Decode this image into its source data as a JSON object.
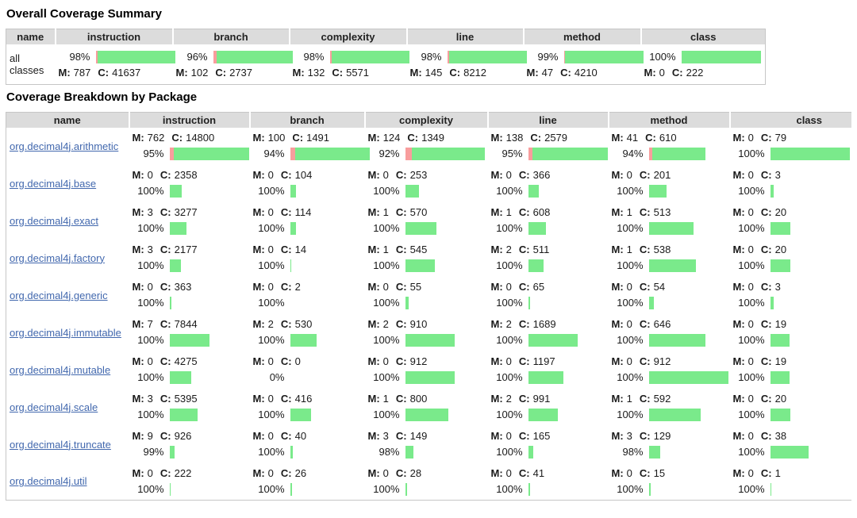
{
  "summary_title": "Overall Coverage Summary",
  "breakdown_title": "Coverage Breakdown by Package",
  "columns": [
    "name",
    "instruction",
    "branch",
    "complexity",
    "line",
    "method",
    "class"
  ],
  "metrics": [
    "instruction",
    "branch",
    "complexity",
    "line",
    "method",
    "class"
  ],
  "labels": {
    "missed": "M:",
    "covered": "C:"
  },
  "colors": {
    "covered_green": "#7aea8b",
    "missed_red": "#f89d9d",
    "header_bg": "#dcdcdc",
    "table_border": "#c6c6c6",
    "link_blue": "#4268ae"
  },
  "summary": {
    "name": "all classes",
    "metrics": {
      "instruction": {
        "pct": "98%",
        "missed": 787,
        "covered": 41637
      },
      "branch": {
        "pct": "96%",
        "missed": 102,
        "covered": 2737
      },
      "complexity": {
        "pct": "98%",
        "missed": 132,
        "covered": 5571
      },
      "line": {
        "pct": "98%",
        "missed": 145,
        "covered": 8212
      },
      "method": {
        "pct": "99%",
        "missed": 47,
        "covered": 4210
      },
      "class": {
        "pct": "100%",
        "missed": 0,
        "covered": 222
      }
    }
  },
  "packages": [
    {
      "name": "org.decimal4j.arithmetic",
      "metrics": {
        "instruction": {
          "pct": "95%",
          "missed": 762,
          "covered": 14800
        },
        "branch": {
          "pct": "94%",
          "missed": 100,
          "covered": 1491
        },
        "complexity": {
          "pct": "92%",
          "missed": 124,
          "covered": 1349
        },
        "line": {
          "pct": "95%",
          "missed": 138,
          "covered": 2579
        },
        "method": {
          "pct": "94%",
          "missed": 41,
          "covered": 610
        },
        "class": {
          "pct": "100%",
          "missed": 0,
          "covered": 79
        }
      }
    },
    {
      "name": "org.decimal4j.base",
      "metrics": {
        "instruction": {
          "pct": "100%",
          "missed": 0,
          "covered": 2358
        },
        "branch": {
          "pct": "100%",
          "missed": 0,
          "covered": 104
        },
        "complexity": {
          "pct": "100%",
          "missed": 0,
          "covered": 253
        },
        "line": {
          "pct": "100%",
          "missed": 0,
          "covered": 366
        },
        "method": {
          "pct": "100%",
          "missed": 0,
          "covered": 201
        },
        "class": {
          "pct": "100%",
          "missed": 0,
          "covered": 3
        }
      }
    },
    {
      "name": "org.decimal4j.exact",
      "metrics": {
        "instruction": {
          "pct": "100%",
          "missed": 3,
          "covered": 3277
        },
        "branch": {
          "pct": "100%",
          "missed": 0,
          "covered": 114
        },
        "complexity": {
          "pct": "100%",
          "missed": 1,
          "covered": 570
        },
        "line": {
          "pct": "100%",
          "missed": 1,
          "covered": 608
        },
        "method": {
          "pct": "100%",
          "missed": 1,
          "covered": 513
        },
        "class": {
          "pct": "100%",
          "missed": 0,
          "covered": 20
        }
      }
    },
    {
      "name": "org.decimal4j.factory",
      "metrics": {
        "instruction": {
          "pct": "100%",
          "missed": 3,
          "covered": 2177
        },
        "branch": {
          "pct": "100%",
          "missed": 0,
          "covered": 14
        },
        "complexity": {
          "pct": "100%",
          "missed": 1,
          "covered": 545
        },
        "line": {
          "pct": "100%",
          "missed": 2,
          "covered": 511
        },
        "method": {
          "pct": "100%",
          "missed": 1,
          "covered": 538
        },
        "class": {
          "pct": "100%",
          "missed": 0,
          "covered": 20
        }
      }
    },
    {
      "name": "org.decimal4j.generic",
      "metrics": {
        "instruction": {
          "pct": "100%",
          "missed": 0,
          "covered": 363
        },
        "branch": {
          "pct": "100%",
          "missed": 0,
          "covered": 2
        },
        "complexity": {
          "pct": "100%",
          "missed": 0,
          "covered": 55
        },
        "line": {
          "pct": "100%",
          "missed": 0,
          "covered": 65
        },
        "method": {
          "pct": "100%",
          "missed": 0,
          "covered": 54
        },
        "class": {
          "pct": "100%",
          "missed": 0,
          "covered": 3
        }
      }
    },
    {
      "name": "org.decimal4j.immutable",
      "metrics": {
        "instruction": {
          "pct": "100%",
          "missed": 7,
          "covered": 7844
        },
        "branch": {
          "pct": "100%",
          "missed": 2,
          "covered": 530
        },
        "complexity": {
          "pct": "100%",
          "missed": 2,
          "covered": 910
        },
        "line": {
          "pct": "100%",
          "missed": 2,
          "covered": 1689
        },
        "method": {
          "pct": "100%",
          "missed": 0,
          "covered": 646
        },
        "class": {
          "pct": "100%",
          "missed": 0,
          "covered": 19
        }
      }
    },
    {
      "name": "org.decimal4j.mutable",
      "metrics": {
        "instruction": {
          "pct": "100%",
          "missed": 0,
          "covered": 4275
        },
        "branch": {
          "pct": "0%",
          "missed": 0,
          "covered": 0
        },
        "complexity": {
          "pct": "100%",
          "missed": 0,
          "covered": 912
        },
        "line": {
          "pct": "100%",
          "missed": 0,
          "covered": 1197
        },
        "method": {
          "pct": "100%",
          "missed": 0,
          "covered": 912
        },
        "class": {
          "pct": "100%",
          "missed": 0,
          "covered": 19
        }
      }
    },
    {
      "name": "org.decimal4j.scale",
      "metrics": {
        "instruction": {
          "pct": "100%",
          "missed": 3,
          "covered": 5395
        },
        "branch": {
          "pct": "100%",
          "missed": 0,
          "covered": 416
        },
        "complexity": {
          "pct": "100%",
          "missed": 1,
          "covered": 800
        },
        "line": {
          "pct": "100%",
          "missed": 2,
          "covered": 991
        },
        "method": {
          "pct": "100%",
          "missed": 1,
          "covered": 592
        },
        "class": {
          "pct": "100%",
          "missed": 0,
          "covered": 20
        }
      }
    },
    {
      "name": "org.decimal4j.truncate",
      "metrics": {
        "instruction": {
          "pct": "99%",
          "missed": 9,
          "covered": 926
        },
        "branch": {
          "pct": "100%",
          "missed": 0,
          "covered": 40
        },
        "complexity": {
          "pct": "98%",
          "missed": 3,
          "covered": 149
        },
        "line": {
          "pct": "100%",
          "missed": 0,
          "covered": 165
        },
        "method": {
          "pct": "98%",
          "missed": 3,
          "covered": 129
        },
        "class": {
          "pct": "100%",
          "missed": 0,
          "covered": 38
        }
      }
    },
    {
      "name": "org.decimal4j.util",
      "metrics": {
        "instruction": {
          "pct": "100%",
          "missed": 0,
          "covered": 222
        },
        "branch": {
          "pct": "100%",
          "missed": 0,
          "covered": 26
        },
        "complexity": {
          "pct": "100%",
          "missed": 0,
          "covered": 28
        },
        "line": {
          "pct": "100%",
          "missed": 0,
          "covered": 41
        },
        "method": {
          "pct": "100%",
          "missed": 0,
          "covered": 15
        },
        "class": {
          "pct": "100%",
          "missed": 0,
          "covered": 1
        }
      }
    }
  ]
}
